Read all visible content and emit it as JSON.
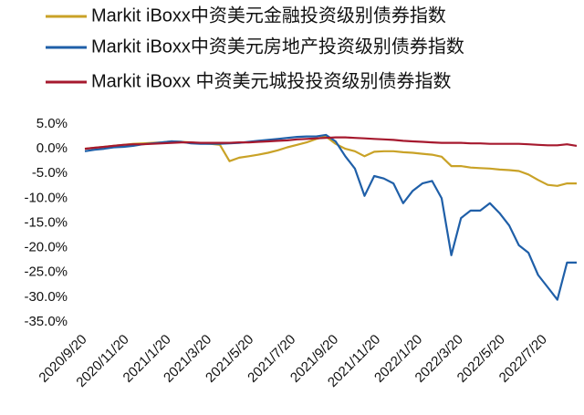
{
  "chart_data": {
    "type": "line",
    "x": [
      "2020/9/20",
      "2020/10/4",
      "2020/10/18",
      "2020/11/1",
      "2020/11/15",
      "2020/11/29",
      "2020/12/13",
      "2020/12/27",
      "2021/1/10",
      "2021/1/24",
      "2021/2/7",
      "2021/2/21",
      "2021/3/7",
      "2021/3/21",
      "2021/4/4",
      "2021/4/18",
      "2021/5/2",
      "2021/5/16",
      "2021/5/30",
      "2021/6/13",
      "2021/6/27",
      "2021/7/11",
      "2021/7/25",
      "2021/8/8",
      "2021/8/22",
      "2021/9/5",
      "2021/9/19",
      "2021/10/3",
      "2021/10/17",
      "2021/10/31",
      "2021/11/14",
      "2021/11/28",
      "2021/12/12",
      "2021/12/26",
      "2022/1/9",
      "2022/1/23",
      "2022/2/6",
      "2022/2/20",
      "2022/3/6",
      "2022/3/20",
      "2022/4/3",
      "2022/4/17",
      "2022/5/1",
      "2022/5/15",
      "2022/5/29",
      "2022/6/12",
      "2022/6/26",
      "2022/7/10",
      "2022/7/24",
      "2022/8/7",
      "2022/8/21",
      "2022/9/4"
    ],
    "series": [
      {
        "name": "Markit iBoxx中资美元金融投资级别债券指数",
        "color": "#C9A227",
        "values": [
          0,
          0.2,
          0.4,
          0.6,
          0.8,
          1.0,
          1.1,
          1.2,
          1.3,
          1.5,
          1.4,
          1.3,
          1.1,
          1.0,
          0.8,
          -2.5,
          -1.8,
          -1.5,
          -1.2,
          -0.8,
          -0.3,
          0.3,
          0.8,
          1.3,
          2.0,
          2.5,
          1.0,
          0,
          -0.5,
          -1.5,
          -0.6,
          -0.5,
          -0.5,
          -0.7,
          -0.8,
          -1.0,
          -1.2,
          -1.6,
          -3.5,
          -3.5,
          -3.8,
          -3.9,
          -4.0,
          -4.2,
          -4.3,
          -4.5,
          -5.2,
          -6.3,
          -7.3,
          -7.5,
          -7.0,
          -7.0
        ]
      },
      {
        "name": "Markit iBoxx中资美元房地产投资级别债券指数",
        "color": "#1F5FA8",
        "values": [
          -0.5,
          -0.2,
          0,
          0.3,
          0.4,
          0.6,
          0.9,
          1.1,
          1.3,
          1.5,
          1.4,
          1.1,
          1.0,
          1.0,
          1.0,
          1.1,
          1.2,
          1.4,
          1.6,
          1.8,
          2.0,
          2.2,
          2.4,
          2.5,
          2.5,
          2.8,
          1.5,
          -1.5,
          -4,
          -9.5,
          -5.5,
          -6,
          -7,
          -11,
          -8.5,
          -7,
          -6.5,
          -10,
          -21.5,
          -14,
          -12.5,
          -12.5,
          -11,
          -13,
          -15.5,
          -19.5,
          -21,
          -25.5,
          -28,
          -30.5,
          -23,
          -23
        ]
      },
      {
        "name": "Markit iBoxx 中资美元城投投资级别债券指数",
        "color": "#A6192E",
        "values": [
          0,
          0.2,
          0.4,
          0.6,
          0.8,
          0.9,
          0.9,
          1.0,
          1.1,
          1.2,
          1.3,
          1.3,
          1.2,
          1.2,
          1.2,
          1.2,
          1.3,
          1.3,
          1.4,
          1.5,
          1.6,
          1.7,
          1.9,
          2.0,
          2.1,
          2.2,
          2.3,
          2.3,
          2.2,
          2.1,
          2.0,
          1.9,
          1.8,
          1.6,
          1.5,
          1.4,
          1.3,
          1.2,
          1.2,
          1.2,
          1.1,
          1.1,
          1.0,
          1.0,
          1.0,
          1.0,
          0.9,
          0.8,
          0.7,
          0.7,
          0.9,
          0.6
        ]
      }
    ],
    "xlim": [
      "2020/9/16",
      "2022/9/8"
    ],
    "xticks": [
      "2020/9/20",
      "2020/11/20",
      "2021/1/20",
      "2021/3/20",
      "2021/5/20",
      "2021/7/20",
      "2021/9/20",
      "2021/11/20",
      "2022/1/20",
      "2022/3/20",
      "2022/5/20",
      "2022/7/20"
    ],
    "ylim": [
      -35,
      5
    ],
    "yticks": [
      {
        "value": 5,
        "label": "5.0%"
      },
      {
        "value": 0,
        "label": "0.0%"
      },
      {
        "value": -5,
        "label": "-5.0%"
      },
      {
        "value": -10,
        "label": "-10.0%"
      },
      {
        "value": -15,
        "label": "-15.0%"
      },
      {
        "value": -20,
        "label": "-20.0%"
      },
      {
        "value": -25,
        "label": "-25.0%"
      },
      {
        "value": -30,
        "label": "-30.0%"
      },
      {
        "value": -35,
        "label": "-35.0%"
      }
    ],
    "grid": false,
    "legend": "top"
  }
}
